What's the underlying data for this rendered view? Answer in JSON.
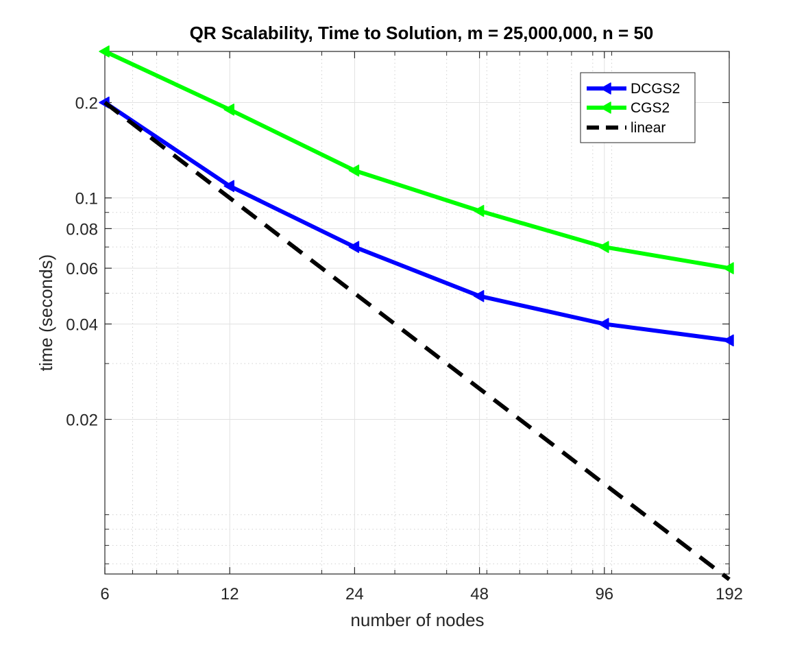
{
  "chart_data": {
    "type": "line",
    "title": "QR Scalability, Time to Solution, m = 25,000,000, n = 50",
    "xlabel": "number of nodes",
    "ylabel": "time (seconds)",
    "x_scale": "log",
    "y_scale": "log",
    "x": [
      6,
      12,
      24,
      48,
      96,
      192
    ],
    "xlim": [
      6,
      192
    ],
    "ylim": [
      0.0065,
      0.29
    ],
    "x_ticks": [
      6,
      12,
      24,
      48,
      96,
      192
    ],
    "x_tick_labels": [
      "6",
      "12",
      "24",
      "48",
      "96",
      "192"
    ],
    "y_ticks": [
      0.02,
      0.04,
      0.06,
      0.08,
      0.1,
      0.2
    ],
    "y_tick_labels": [
      "0.02",
      "0.04",
      "0.06",
      "0.08",
      "0.1",
      "0.2"
    ],
    "grid": true,
    "legend_position": "top-right",
    "series": [
      {
        "name": "DCGS2",
        "color": "#0000ff",
        "style": "solid",
        "marker": "left-triangle",
        "values": [
          0.2,
          0.109,
          0.07,
          0.049,
          0.04,
          0.0355
        ]
      },
      {
        "name": "CGS2",
        "color": "#00ff00",
        "style": "solid",
        "marker": "left-triangle",
        "values": [
          0.29,
          0.19,
          0.122,
          0.091,
          0.07,
          0.06
        ]
      },
      {
        "name": "linear",
        "color": "#000000",
        "style": "dashed",
        "marker": "none",
        "values": [
          0.2,
          0.1,
          0.05,
          0.025,
          0.0125,
          0.00625
        ]
      }
    ]
  }
}
